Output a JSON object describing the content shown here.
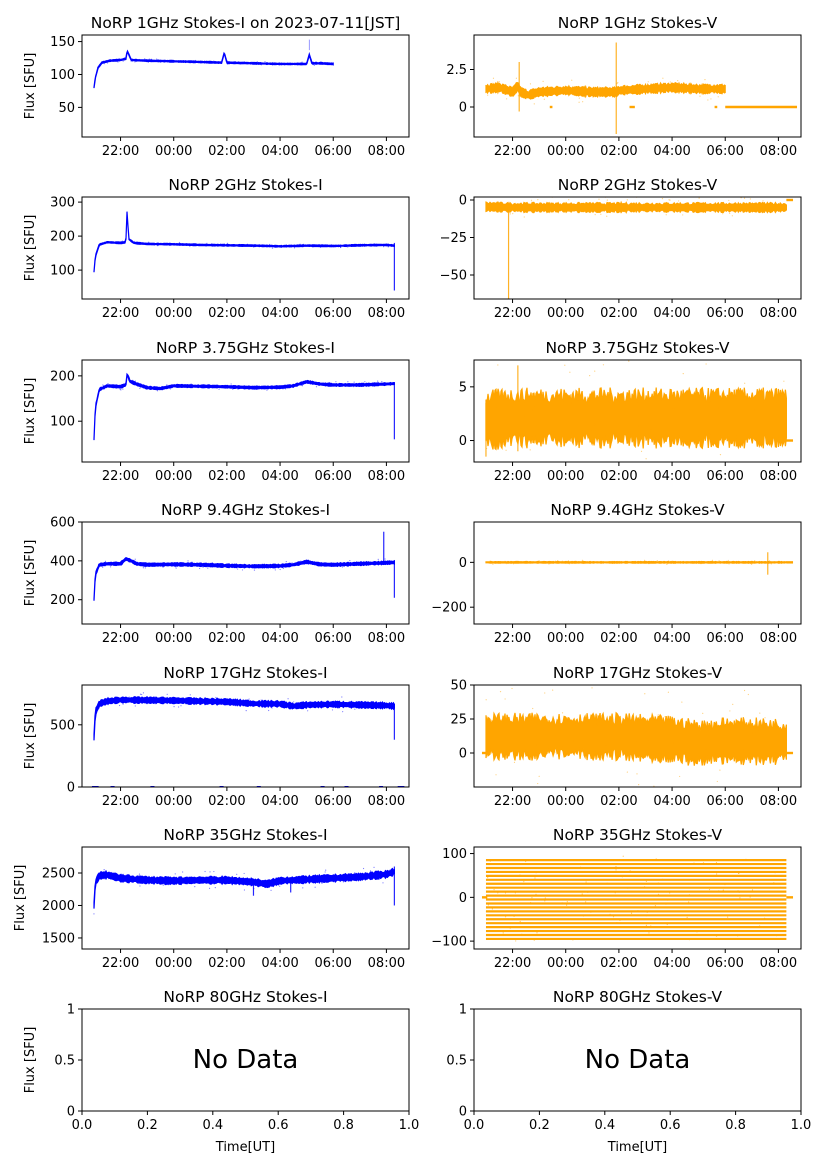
{
  "figure": {
    "series_colors": {
      "stokes_i": "#0000ff",
      "stokes_v": "#ffa500"
    },
    "no_data_text": "No Data"
  },
  "chart_data": [
    {
      "id": "p1i",
      "type": "scatter",
      "title": "NoRP 1GHz Stokes-I on 2023-07-11[JST]",
      "ylabel": "Flux [SFU]",
      "xlabel": "",
      "x_ticks": [
        "22:00",
        "00:00",
        "02:00",
        "04:00",
        "06:00",
        "08:00"
      ],
      "x_tick_hours": [
        22,
        24,
        26,
        28,
        30,
        32
      ],
      "xlim": [
        20.55,
        32.85
      ],
      "ylim": [
        5,
        160
      ],
      "y_ticks": [
        50,
        100,
        150
      ],
      "has_data": true,
      "color": "#0000ff",
      "band": 2,
      "x": [
        21.0,
        21.05,
        21.15,
        21.3,
        21.6,
        22.0,
        22.2,
        22.25,
        22.4,
        23.0,
        24.0,
        25.0,
        25.8,
        25.9,
        26.0,
        27.0,
        28.0,
        29.0,
        29.1,
        29.2,
        29.5,
        30.0
      ],
      "y": [
        80,
        95,
        110,
        118,
        121,
        122,
        124,
        136,
        122,
        121,
        120,
        119,
        118,
        133,
        118,
        117,
        116,
        116,
        130,
        117,
        117,
        116
      ],
      "outliers": [
        [
          29.1,
          145
        ]
      ],
      "gaps": []
    },
    {
      "id": "p1v",
      "type": "scatter",
      "title": "NoRP 1GHz Stokes-V",
      "ylabel": "",
      "xlabel": "",
      "x_ticks": [
        "22:00",
        "00:00",
        "02:00",
        "04:00",
        "06:00",
        "08:00"
      ],
      "x_tick_hours": [
        22,
        24,
        26,
        28,
        30,
        32
      ],
      "xlim": [
        20.55,
        32.85
      ],
      "ylim": [
        -2.0,
        4.8
      ],
      "y_ticks": [
        0.0,
        2.5
      ],
      "has_data": true,
      "color": "#ffa500",
      "band": 0.5,
      "x": [
        21.0,
        21.5,
        22.0,
        22.2,
        22.3,
        22.6,
        23.0,
        24.0,
        25.0,
        25.8,
        25.9,
        26.0,
        27.0,
        28.0,
        29.0,
        30.0
      ],
      "y": [
        1.2,
        1.3,
        1.0,
        1.4,
        1.0,
        0.8,
        1.0,
        1.1,
        1.0,
        1.0,
        1.0,
        1.1,
        1.2,
        1.3,
        1.2,
        1.2
      ],
      "spikes": [
        [
          22.25,
          -0.3,
          3.0
        ],
        [
          25.9,
          -1.8,
          4.3
        ]
      ],
      "flat": [
        [
          23.4,
          23.5,
          0
        ],
        [
          26.4,
          26.6,
          0
        ],
        [
          29.6,
          29.7,
          0
        ],
        [
          30.0,
          32.7,
          0
        ]
      ],
      "gaps": []
    },
    {
      "id": "p2i",
      "type": "scatter",
      "title": "NoRP 2GHz Stokes-I",
      "ylabel": "Flux [SFU]",
      "xlabel": "",
      "x_ticks": [
        "22:00",
        "00:00",
        "02:00",
        "04:00",
        "06:00",
        "08:00"
      ],
      "x_tick_hours": [
        22,
        24,
        26,
        28,
        30,
        32
      ],
      "xlim": [
        20.55,
        32.85
      ],
      "ylim": [
        15,
        315
      ],
      "y_ticks": [
        100,
        200,
        300
      ],
      "has_data": true,
      "color": "#0000ff",
      "band": 4,
      "x": [
        21.0,
        21.05,
        21.2,
        21.5,
        22.0,
        22.2,
        22.25,
        22.3,
        22.5,
        23.0,
        24.0,
        25.0,
        26.0,
        27.0,
        28.0,
        29.0,
        30.0,
        31.0,
        32.0,
        32.3
      ],
      "y": [
        95,
        140,
        175,
        182,
        180,
        182,
        285,
        192,
        180,
        177,
        176,
        174,
        173,
        172,
        170,
        172,
        171,
        173,
        174,
        172
      ],
      "spikes": [
        [
          32.3,
          40,
          180
        ]
      ],
      "gaps": []
    },
    {
      "id": "p2v",
      "type": "scatter",
      "title": "NoRP 2GHz Stokes-V",
      "ylabel": "",
      "xlabel": "",
      "x_ticks": [
        "22:00",
        "00:00",
        "02:00",
        "04:00",
        "06:00",
        "08:00"
      ],
      "x_tick_hours": [
        22,
        24,
        26,
        28,
        30,
        32
      ],
      "xlim": [
        20.55,
        32.85
      ],
      "ylim": [
        -66,
        2
      ],
      "y_ticks": [
        -50,
        -25,
        0
      ],
      "has_data": true,
      "color": "#ffa500",
      "band": 5,
      "x": [
        21.0,
        22.0,
        24.0,
        26.0,
        28.0,
        30.0,
        32.3
      ],
      "y": [
        -4.5,
        -5,
        -5,
        -5,
        -5,
        -5,
        -5
      ],
      "spikes": [
        [
          21.85,
          -66,
          -5
        ]
      ],
      "flat": [
        [
          32.3,
          32.55,
          0
        ]
      ],
      "gaps": []
    },
    {
      "id": "p3i",
      "type": "scatter",
      "title": "NoRP 3.75GHz Stokes-I",
      "ylabel": "Flux [SFU]",
      "xlabel": "",
      "x_ticks": [
        "22:00",
        "00:00",
        "02:00",
        "04:00",
        "06:00",
        "08:00"
      ],
      "x_tick_hours": [
        22,
        24,
        26,
        28,
        30,
        32
      ],
      "xlim": [
        20.55,
        32.85
      ],
      "ylim": [
        10,
        235
      ],
      "y_ticks": [
        100,
        200
      ],
      "has_data": true,
      "color": "#0000ff",
      "band": 5,
      "x": [
        21.0,
        21.05,
        21.2,
        21.5,
        22.0,
        22.2,
        22.25,
        22.35,
        22.6,
        23.0,
        23.5,
        24.0,
        25.0,
        26.0,
        27.0,
        28.0,
        28.5,
        29.0,
        29.5,
        30.0,
        31.0,
        32.0,
        32.3
      ],
      "y": [
        60,
        130,
        170,
        178,
        176,
        180,
        205,
        188,
        182,
        174,
        172,
        178,
        177,
        176,
        174,
        175,
        178,
        187,
        182,
        180,
        180,
        182,
        183
      ],
      "spikes": [
        [
          32.3,
          60,
          185
        ]
      ],
      "gaps": []
    },
    {
      "id": "p3v",
      "type": "scatter",
      "title": "NoRP 3.75GHz Stokes-V",
      "ylabel": "",
      "xlabel": "",
      "x_ticks": [
        "22:00",
        "00:00",
        "02:00",
        "04:00",
        "06:00",
        "08:00"
      ],
      "x_tick_hours": [
        22,
        24,
        26,
        28,
        30,
        32
      ],
      "xlim": [
        20.55,
        32.85
      ],
      "ylim": [
        -2.0,
        7.5
      ],
      "y_ticks": [
        0,
        5
      ],
      "has_data": true,
      "color": "#ffa500",
      "band": 4.2,
      "x": [
        21.0,
        22.0,
        24.0,
        26.0,
        28.0,
        30.0,
        32.3
      ],
      "y": [
        1.9,
        2.1,
        2.1,
        2.1,
        2.1,
        2.1,
        2.1
      ],
      "spikes": [
        [
          22.2,
          -1.0,
          7.0
        ],
        [
          21.0,
          -1.5,
          3.5
        ]
      ],
      "flat": [
        [
          32.3,
          32.55,
          0
        ]
      ],
      "gaps": []
    },
    {
      "id": "p4i",
      "type": "scatter",
      "title": "NoRP 9.4GHz Stokes-I",
      "ylabel": "Flux [SFU]",
      "xlabel": "",
      "x_ticks": [
        "22:00",
        "00:00",
        "02:00",
        "04:00",
        "06:00",
        "08:00"
      ],
      "x_tick_hours": [
        22,
        24,
        26,
        28,
        30,
        32
      ],
      "xlim": [
        20.55,
        32.85
      ],
      "ylim": [
        75,
        600
      ],
      "y_ticks": [
        200,
        400,
        600
      ],
      "has_data": true,
      "color": "#0000ff",
      "band": 14,
      "x": [
        21.0,
        21.05,
        21.2,
        21.5,
        22.0,
        22.2,
        22.4,
        22.6,
        23.0,
        24.0,
        25.0,
        26.0,
        27.0,
        28.0,
        28.5,
        29.0,
        29.5,
        30.0,
        31.0,
        32.0,
        32.3
      ],
      "y": [
        200,
        330,
        380,
        385,
        385,
        410,
        400,
        385,
        380,
        382,
        380,
        375,
        372,
        374,
        380,
        395,
        382,
        380,
        385,
        390,
        392
      ],
      "spikes": [
        [
          32.3,
          210,
          400
        ],
        [
          31.9,
          380,
          550
        ]
      ],
      "gaps": []
    },
    {
      "id": "p4v",
      "type": "scatter",
      "title": "NoRP 9.4GHz Stokes-V",
      "ylabel": "",
      "xlabel": "",
      "x_ticks": [
        "22:00",
        "00:00",
        "02:00",
        "04:00",
        "06:00",
        "08:00"
      ],
      "x_tick_hours": [
        22,
        24,
        26,
        28,
        30,
        32
      ],
      "xlim": [
        20.55,
        32.85
      ],
      "ylim": [
        -275,
        180
      ],
      "y_ticks": [
        -200,
        0
      ],
      "has_data": true,
      "color": "#ffa500",
      "band": 6,
      "x": [
        21.0,
        22.0,
        24.0,
        26.0,
        28.0,
        30.0,
        32.3
      ],
      "y": [
        0,
        0,
        0,
        0,
        0,
        0,
        0
      ],
      "spikes": [
        [
          31.6,
          -55,
          45
        ]
      ],
      "flat": [
        [
          32.3,
          32.55,
          0
        ]
      ],
      "gaps": []
    },
    {
      "id": "p5i",
      "type": "scatter",
      "title": "NoRP 17GHz Stokes-I",
      "ylabel": "Flux [SFU]",
      "xlabel": "",
      "x_ticks": [
        "22:00",
        "00:00",
        "02:00",
        "04:00",
        "06:00",
        "08:00"
      ],
      "x_tick_hours": [
        22,
        24,
        26,
        28,
        30,
        32
      ],
      "xlim": [
        20.55,
        32.85
      ],
      "ylim": [
        0,
        820
      ],
      "y_ticks": [
        0,
        500
      ],
      "has_data": true,
      "color": "#0000ff",
      "band": 40,
      "x": [
        21.0,
        21.05,
        21.2,
        21.5,
        22.0,
        23.0,
        24.0,
        25.0,
        26.0,
        27.0,
        28.0,
        28.5,
        29.0,
        30.0,
        31.0,
        32.0,
        32.3
      ],
      "y": [
        400,
        600,
        670,
        690,
        700,
        698,
        695,
        690,
        685,
        670,
        668,
        650,
        660,
        665,
        660,
        655,
        650
      ],
      "spikes": [
        [
          32.3,
          380,
          640
        ]
      ],
      "zeros": [
        21.0,
        21.1,
        21.7,
        23.2,
        25.8,
        27.2,
        29.6,
        30.5,
        31.8,
        32.5,
        32.6
      ],
      "gaps": []
    },
    {
      "id": "p5v",
      "type": "scatter",
      "title": "NoRP 17GHz Stokes-V",
      "ylabel": "",
      "xlabel": "",
      "x_ticks": [
        "22:00",
        "00:00",
        "02:00",
        "04:00",
        "06:00",
        "08:00"
      ],
      "x_tick_hours": [
        22,
        24,
        26,
        28,
        30,
        32
      ],
      "xlim": [
        20.55,
        32.85
      ],
      "ylim": [
        -25,
        50
      ],
      "y_ticks": [
        0,
        25,
        50
      ],
      "has_data": true,
      "color": "#ffa500",
      "band": 26,
      "x": [
        21.0,
        22.0,
        24.0,
        26.0,
        28.0,
        29.0,
        30.0,
        32.3
      ],
      "y": [
        12,
        12,
        12,
        12,
        10,
        7,
        9,
        8
      ],
      "flat": [
        [
          20.85,
          21.05,
          0
        ],
        [
          32.3,
          32.55,
          0
        ]
      ],
      "gaps": []
    },
    {
      "id": "p6i",
      "type": "scatter",
      "title": "NoRP 35GHz Stokes-I",
      "ylabel": "Flux [SFU]",
      "xlabel": "",
      "x_ticks": [
        "22:00",
        "00:00",
        "02:00",
        "04:00",
        "06:00",
        "08:00"
      ],
      "x_tick_hours": [
        22,
        24,
        26,
        28,
        30,
        32
      ],
      "xlim": [
        20.55,
        32.85
      ],
      "ylim": [
        1330,
        2900
      ],
      "y_ticks": [
        1500,
        2000,
        2500
      ],
      "has_data": true,
      "color": "#0000ff",
      "band": 90,
      "x": [
        21.0,
        21.05,
        21.2,
        21.5,
        22.0,
        23.0,
        24.0,
        25.0,
        26.0,
        27.0,
        27.5,
        28.0,
        29.0,
        30.0,
        31.0,
        32.0,
        32.3
      ],
      "y": [
        2000,
        2350,
        2460,
        2470,
        2420,
        2390,
        2380,
        2390,
        2390,
        2360,
        2330,
        2380,
        2400,
        2420,
        2440,
        2480,
        2520
      ],
      "spikes": [
        [
          27.0,
          2150,
          2400
        ],
        [
          28.4,
          2200,
          2420
        ],
        [
          32.3,
          2000,
          2600
        ]
      ],
      "gaps": []
    },
    {
      "id": "p6v",
      "type": "scatter",
      "title": "NoRP 35GHz Stokes-V",
      "ylabel": "",
      "xlabel": "",
      "x_ticks": [
        "22:00",
        "00:00",
        "02:00",
        "04:00",
        "06:00",
        "08:00"
      ],
      "x_tick_hours": [
        22,
        24,
        26,
        28,
        30,
        32
      ],
      "xlim": [
        20.55,
        32.85
      ],
      "ylim": [
        -118,
        115
      ],
      "y_ticks": [
        -100,
        0,
        100
      ],
      "has_data": true,
      "color": "#ffa500",
      "band": 180,
      "striped": true,
      "x": [
        21.0,
        22.0,
        24.0,
        26.0,
        28.0,
        30.0,
        32.3
      ],
      "y": [
        -5,
        -5,
        -5,
        -5,
        -5,
        -5,
        -5
      ],
      "flat": [
        [
          20.85,
          21.05,
          0
        ],
        [
          32.3,
          32.55,
          0
        ]
      ],
      "gaps": []
    },
    {
      "id": "p7i",
      "type": "scatter",
      "title": "NoRP 80GHz Stokes-I",
      "ylabel": "Flux [SFU]",
      "xlabel": "Time[UT]",
      "x_ticks": [
        "0.0",
        "0.2",
        "0.4",
        "0.6",
        "0.8",
        "1.0"
      ],
      "x_tick_hours": [
        0,
        0.2,
        0.4,
        0.6,
        0.8,
        1.0
      ],
      "xlim": [
        0,
        1
      ],
      "ylim": [
        0,
        1
      ],
      "y_ticks": [
        0.0,
        0.5,
        1.0
      ],
      "has_data": false
    },
    {
      "id": "p7v",
      "type": "scatter",
      "title": "NoRP 80GHz Stokes-V",
      "ylabel": "",
      "xlabel": "Time[UT]",
      "x_ticks": [
        "0.0",
        "0.2",
        "0.4",
        "0.6",
        "0.8",
        "1.0"
      ],
      "x_tick_hours": [
        0,
        0.2,
        0.4,
        0.6,
        0.8,
        1.0
      ],
      "xlim": [
        0,
        1
      ],
      "ylim": [
        0,
        1
      ],
      "y_ticks": [
        0.0,
        0.5,
        1.0
      ],
      "has_data": false
    }
  ]
}
